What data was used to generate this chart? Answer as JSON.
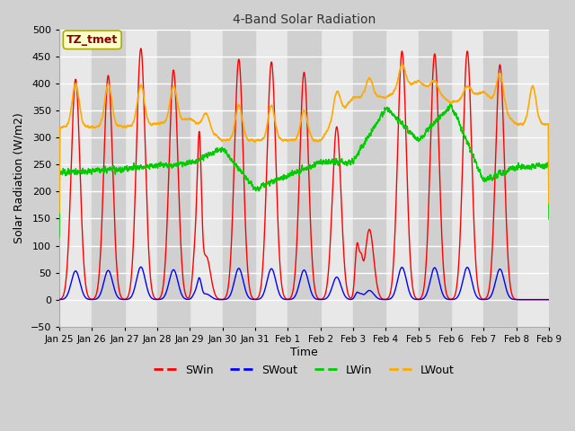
{
  "title": "4-Band Solar Radiation",
  "xlabel": "Time",
  "ylabel": "Solar Radiation (W/m2)",
  "ylim": [
    -50,
    500
  ],
  "xlim": [
    0,
    360
  ],
  "annotation": "TZ_tmet",
  "fig_facecolor": "#d0d0d0",
  "plot_facecolor": "#e8e8e8",
  "alt_band_color": "#d0d0d0",
  "grid_color": "#ffffff",
  "colors": {
    "SWin": "#ff0000",
    "SWout": "#0000ff",
    "LWin": "#00cc00",
    "LWout": "#ffaa00"
  },
  "tick_labels": [
    "Jan 25",
    "Jan 26",
    "Jan 27",
    "Jan 28",
    "Jan 29",
    "Jan 30",
    "Jan 31",
    "Feb 1",
    "Feb 2",
    "Feb 3",
    "Feb 4",
    "Feb 5",
    "Feb 6",
    "Feb 7",
    "Feb 8",
    "Feb 9"
  ],
  "tick_positions": [
    0,
    24,
    48,
    72,
    96,
    120,
    144,
    168,
    192,
    216,
    240,
    264,
    288,
    312,
    336,
    360
  ],
  "yticks": [
    -50,
    0,
    50,
    100,
    150,
    200,
    250,
    300,
    350,
    400,
    450,
    500
  ]
}
